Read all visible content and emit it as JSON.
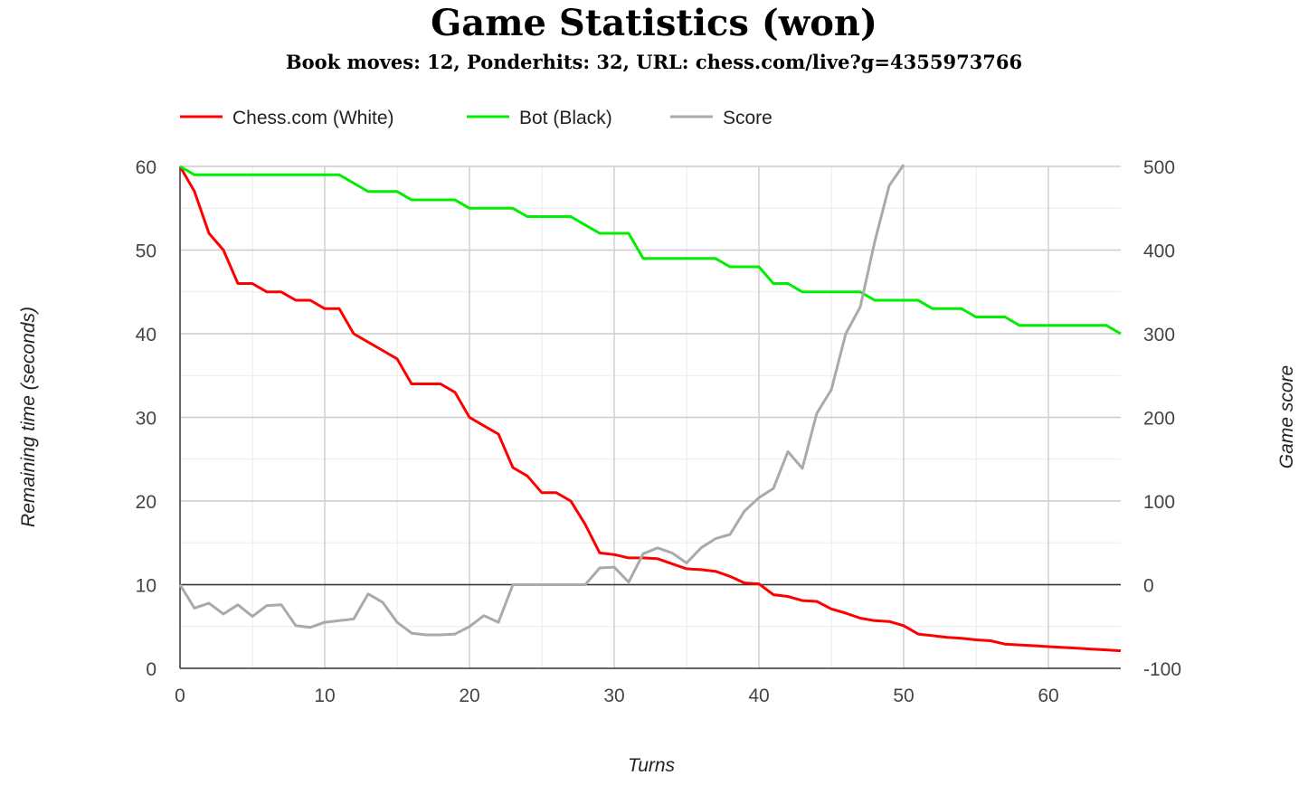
{
  "title": "Game Statistics (won)",
  "subtitle": "Book moves: 12, Ponderhits: 32, URL: chess.com/live?g=4355973766",
  "chart_data": {
    "type": "line",
    "xlabel": "Turns",
    "ylabel_left": "Remaining time (seconds)",
    "ylabel_right": "Game score",
    "xlim": [
      0,
      65
    ],
    "ylim_left": [
      0,
      60
    ],
    "ylim_right": [
      -100,
      500
    ],
    "x_ticks": [
      0,
      10,
      20,
      30,
      40,
      50,
      60
    ],
    "y_left_ticks": [
      0,
      10,
      20,
      30,
      40,
      50,
      60
    ],
    "y_right_ticks": [
      -100,
      0,
      100,
      200,
      300,
      400,
      500
    ],
    "grid": true,
    "legend": "top-left",
    "series": [
      {
        "name": "Chess.com (White)",
        "axis": "left",
        "color": "#ff0000",
        "x": [
          0,
          1,
          2,
          3,
          4,
          5,
          6,
          7,
          8,
          9,
          10,
          11,
          12,
          13,
          14,
          15,
          16,
          17,
          18,
          19,
          20,
          21,
          22,
          23,
          24,
          25,
          26,
          27,
          28,
          29,
          30,
          31,
          32,
          33,
          34,
          35,
          36,
          37,
          38,
          39,
          40,
          41,
          42,
          43,
          44,
          45,
          46,
          47,
          48,
          49,
          50,
          51,
          52,
          53,
          54,
          55,
          56,
          57,
          58,
          59,
          60,
          61,
          62,
          63,
          64,
          65
        ],
        "values": [
          60,
          57,
          52,
          50,
          46,
          46,
          45,
          45,
          44,
          44,
          43,
          43,
          40,
          39,
          38,
          37,
          34,
          34,
          34,
          33,
          30,
          29,
          28,
          24,
          23,
          21,
          21,
          20,
          17.2,
          13.8,
          13.6,
          13.2,
          13.2,
          13.1,
          12.5,
          11.9,
          11.8,
          11.6,
          11.0,
          10.2,
          10.1,
          8.8,
          8.6,
          8.1,
          8.0,
          7.1,
          6.6,
          6.0,
          5.7,
          5.6,
          5.1,
          4.1,
          3.9,
          3.7,
          3.6,
          3.4,
          3.3,
          2.9,
          2.8,
          2.7,
          2.6,
          2.5,
          2.4,
          2.3,
          2.2,
          2.1
        ]
      },
      {
        "name": "Bot (Black)",
        "axis": "left",
        "color": "#00ee00",
        "x": [
          0,
          1,
          2,
          3,
          4,
          5,
          6,
          7,
          8,
          9,
          10,
          11,
          12,
          13,
          14,
          15,
          16,
          17,
          18,
          19,
          20,
          21,
          22,
          23,
          24,
          25,
          26,
          27,
          28,
          29,
          30,
          31,
          32,
          33,
          34,
          35,
          36,
          37,
          38,
          39,
          40,
          41,
          42,
          43,
          44,
          45,
          46,
          47,
          48,
          49,
          50,
          51,
          52,
          53,
          54,
          55,
          56,
          57,
          58,
          59,
          60,
          61,
          62,
          63,
          64,
          65
        ],
        "values": [
          60,
          59,
          59,
          59,
          59,
          59,
          59,
          59,
          59,
          59,
          59,
          59,
          58,
          57,
          57,
          57,
          56,
          56,
          56,
          56,
          55,
          55,
          55,
          55,
          54,
          54,
          54,
          54,
          53,
          52,
          52,
          52,
          49,
          49,
          49,
          49,
          49,
          49,
          48,
          48,
          48,
          46,
          46,
          45,
          45,
          45,
          45,
          45,
          44,
          44,
          44,
          44,
          43,
          43,
          43,
          42,
          42,
          42,
          41,
          41,
          41,
          41,
          41,
          41,
          41,
          40
        ]
      },
      {
        "name": "Score",
        "axis": "right",
        "color": "#aaaaaa",
        "x": [
          0,
          1,
          2,
          3,
          4,
          5,
          6,
          7,
          8,
          9,
          10,
          11,
          12,
          13,
          14,
          15,
          16,
          17,
          18,
          19,
          20,
          21,
          22,
          23,
          24,
          25,
          26,
          27,
          28,
          29,
          30,
          31,
          32,
          33,
          34,
          35,
          36,
          37,
          38,
          39,
          40,
          41,
          42,
          43,
          44,
          45,
          46,
          47,
          48,
          49,
          50
        ],
        "values": [
          0,
          -28,
          -22,
          -35,
          -24,
          -38,
          -25,
          -24,
          -49,
          -51,
          -45,
          -43,
          -41,
          -11,
          -21,
          -45,
          -58,
          -60,
          -60,
          -59,
          -50,
          -37,
          -45,
          0,
          0,
          0,
          0,
          0,
          0,
          20,
          21,
          3,
          37,
          44,
          38,
          26,
          44,
          55,
          60,
          88,
          104,
          115,
          159,
          139,
          205,
          233,
          300,
          332,
          410,
          477,
          502
        ]
      }
    ]
  }
}
